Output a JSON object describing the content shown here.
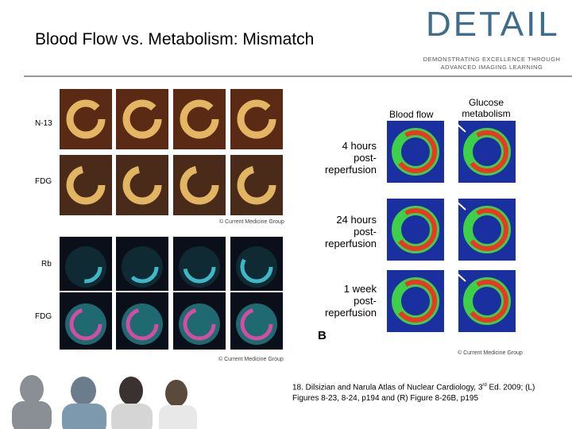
{
  "header": {
    "title": "Blood Flow vs. Metabolism: Mismatch",
    "logo": {
      "name": "DETAIL",
      "tagline": [
        "DEMONSTRATING EXCELLENCE THROUGH",
        "ADVANCED IMAGING LEARNING"
      ]
    }
  },
  "left_figure": {
    "top_rows": [
      "N-13",
      "FDG"
    ],
    "top_credit": "© Current Medicine Group",
    "bottom_rows": [
      "Rb",
      "FDG"
    ],
    "bottom_credit": "© Current Medicine Group"
  },
  "right_figure": {
    "columns": [
      "Blood flow",
      "Glucose\nmetabolism"
    ],
    "rows": [
      "4 hours\npost-\nreperfusion",
      "24 hours\npost-\nreperfusion",
      "1 week\npost-\nreperfusion"
    ],
    "panel": "B",
    "credit": "© Current Medicine Group"
  },
  "citation": {
    "before": "18. Dilsizian and Narula  Atlas of Nuclear Cardiology, 3",
    "superscript": "rd",
    "after": " Ed. 2009; (L) Figures 8-23, 8-24, p194 and (R) Figure 8-26B, p195"
  }
}
